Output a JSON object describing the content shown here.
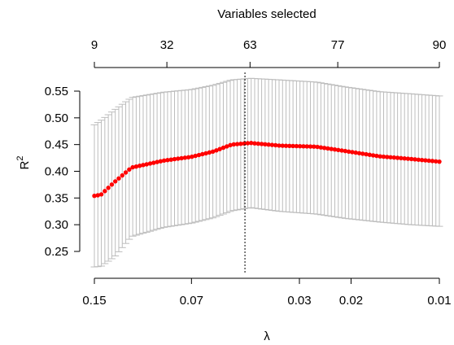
{
  "chart_data": {
    "type": "scatter",
    "title": "",
    "xlabel": "λ",
    "ylabel": "R²",
    "top_axis_title": "Variables selected",
    "x_scale": "log",
    "xlim": [
      0.15,
      0.01
    ],
    "ylim": [
      0.22,
      0.575
    ],
    "x_ticks": [
      {
        "value": 0.15,
        "label": "0.15"
      },
      {
        "value": 0.07,
        "label": "0.07"
      },
      {
        "value": 0.03,
        "label": "0.03"
      },
      {
        "value": 0.02,
        "label": "0.02"
      },
      {
        "value": 0.01,
        "label": "0.01"
      }
    ],
    "y_ticks": [
      {
        "value": 0.25,
        "label": "0.25"
      },
      {
        "value": 0.3,
        "label": "0.30"
      },
      {
        "value": 0.35,
        "label": "0.35"
      },
      {
        "value": 0.4,
        "label": "0.40"
      },
      {
        "value": 0.45,
        "label": "0.45"
      },
      {
        "value": 0.5,
        "label": "0.50"
      },
      {
        "value": 0.55,
        "label": "0.55"
      }
    ],
    "top_ticks": [
      {
        "value": 0.15,
        "label": "9"
      },
      {
        "value": 0.0849,
        "label": "32"
      },
      {
        "value": 0.0442,
        "label": "63"
      },
      {
        "value": 0.0222,
        "label": "77"
      },
      {
        "value": 0.01,
        "label": "90"
      }
    ],
    "vline_x": 0.046,
    "point_color": "#ff0000",
    "errorbar_color": "#bdbdbd",
    "n_points": 100,
    "series": [
      {
        "x_range": [
          0.15,
          0.01
        ],
        "points_anchors": [
          {
            "x": 0.15,
            "mean": 0.354,
            "upper": 0.487,
            "lower": 0.221
          },
          {
            "x": 0.1425,
            "mean": 0.356,
            "upper": 0.495,
            "lower": 0.222
          },
          {
            "x": 0.128,
            "mean": 0.38,
            "upper": 0.515,
            "lower": 0.24
          },
          {
            "x": 0.112,
            "mean": 0.407,
            "upper": 0.538,
            "lower": 0.278
          },
          {
            "x": 0.087,
            "mean": 0.42,
            "upper": 0.548,
            "lower": 0.295
          },
          {
            "x": 0.07,
            "mean": 0.427,
            "upper": 0.553,
            "lower": 0.303
          },
          {
            "x": 0.059,
            "mean": 0.437,
            "upper": 0.561,
            "lower": 0.313
          },
          {
            "x": 0.051,
            "mean": 0.45,
            "upper": 0.571,
            "lower": 0.326
          },
          {
            "x": 0.044,
            "mean": 0.453,
            "upper": 0.574,
            "lower": 0.332
          },
          {
            "x": 0.035,
            "mean": 0.448,
            "upper": 0.571,
            "lower": 0.325
          },
          {
            "x": 0.0263,
            "mean": 0.446,
            "upper": 0.567,
            "lower": 0.32
          },
          {
            "x": 0.021,
            "mean": 0.438,
            "upper": 0.558,
            "lower": 0.312
          },
          {
            "x": 0.016,
            "mean": 0.428,
            "upper": 0.549,
            "lower": 0.305
          },
          {
            "x": 0.0125,
            "mean": 0.423,
            "upper": 0.545,
            "lower": 0.3
          },
          {
            "x": 0.01,
            "mean": 0.418,
            "upper": 0.541,
            "lower": 0.297
          }
        ]
      }
    ]
  }
}
